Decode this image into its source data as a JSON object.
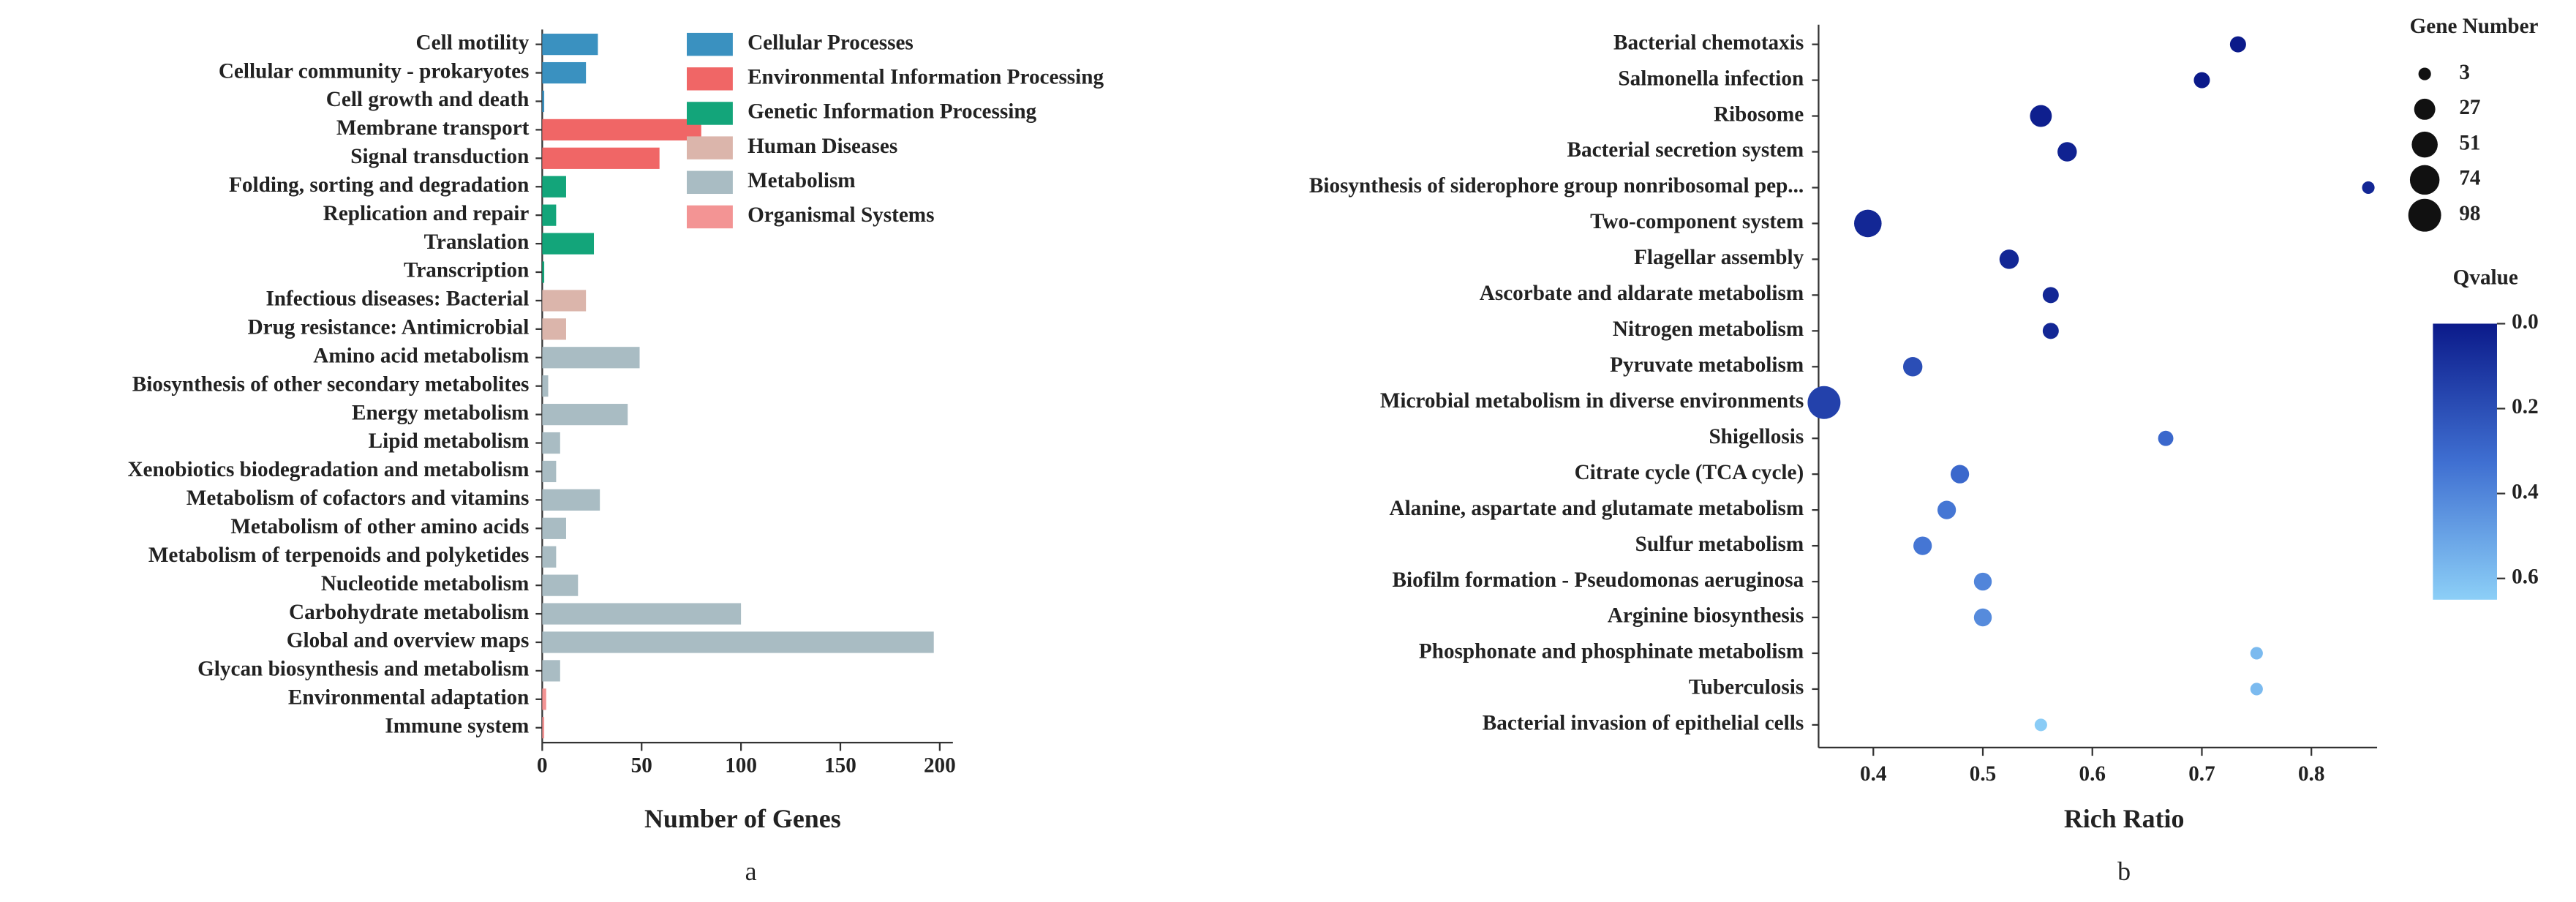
{
  "chart_data": [
    {
      "type": "bar",
      "horizontal": true,
      "grid": false,
      "categories": [
        "Cell motility",
        "Cellular community - prokaryotes",
        "Cell growth and death",
        "Membrane transport",
        "Signal transduction",
        "Folding, sorting and degradation",
        "Replication and repair",
        "Translation",
        "Transcription",
        "Infectious diseases: Bacterial",
        "Drug resistance: Antimicrobial",
        "Amino acid metabolism",
        "Biosynthesis of other secondary metabolites",
        "Energy metabolism",
        "Lipid metabolism",
        "Xenobiotics biodegradation and metabolism",
        "Metabolism of cofactors and vitamins",
        "Metabolism of other amino acids",
        "Metabolism of terpenoids and polyketides",
        "Nucleotide metabolism",
        "Carbohydrate metabolism",
        "Global and overview maps",
        "Glycan biosynthesis and metabolism",
        "Environmental adaptation",
        "Immune system"
      ],
      "series": [
        {
          "name": "Cellular Processes",
          "color": "#3a91c0",
          "values": [
            28,
            22,
            1,
            null,
            null,
            null,
            null,
            null,
            null,
            null,
            null,
            null,
            null,
            null,
            null,
            null,
            null,
            null,
            null,
            null,
            null,
            null,
            null,
            null,
            null
          ]
        },
        {
          "name": "Environmental Information Processing",
          "color": "#f06666",
          "values": [
            null,
            null,
            null,
            80,
            59,
            null,
            null,
            null,
            null,
            null,
            null,
            null,
            null,
            null,
            null,
            null,
            null,
            null,
            null,
            null,
            null,
            null,
            null,
            null,
            null
          ]
        },
        {
          "name": "Genetic Information Processing",
          "color": "#13a57a",
          "values": [
            null,
            null,
            null,
            null,
            null,
            12,
            7,
            26,
            1,
            null,
            null,
            null,
            null,
            null,
            null,
            null,
            null,
            null,
            null,
            null,
            null,
            null,
            null,
            null,
            null
          ]
        },
        {
          "name": "Human Diseases",
          "color": "#dbb5ab",
          "values": [
            null,
            null,
            null,
            null,
            null,
            null,
            null,
            null,
            null,
            22,
            12,
            null,
            null,
            null,
            null,
            null,
            null,
            null,
            null,
            null,
            null,
            null,
            null,
            null,
            null
          ]
        },
        {
          "name": "Metabolism",
          "color": "#a9bcc3",
          "values": [
            null,
            null,
            null,
            null,
            null,
            null,
            null,
            null,
            null,
            null,
            null,
            49,
            3,
            43,
            9,
            7,
            29,
            12,
            7,
            18,
            100,
            197,
            9,
            null,
            null
          ]
        },
        {
          "name": "Organismal Systems",
          "color": "#f39494",
          "values": [
            null,
            null,
            null,
            null,
            null,
            null,
            null,
            null,
            null,
            null,
            null,
            null,
            null,
            null,
            null,
            null,
            null,
            null,
            null,
            null,
            null,
            null,
            null,
            2,
            1
          ]
        }
      ],
      "xlim": [
        0,
        200
      ],
      "xticks": [
        0,
        50,
        100,
        150,
        200
      ],
      "x_label": "Number of Genes",
      "caption": "a"
    },
    {
      "type": "scatter",
      "grid": false,
      "categories": [
        "Bacterial chemotaxis",
        "Salmonella infection",
        "Ribosome",
        "Bacterial secretion system",
        "Biosynthesis of siderophore group nonribosomal pep...",
        "Two-component system",
        "Flagellar assembly",
        "Ascorbate and aldarate metabolism",
        "Nitrogen metabolism",
        "Pyruvate metabolism",
        "Microbial metabolism in diverse environments",
        "Shigellosis",
        "Citrate cycle (TCA cycle)",
        "Alanine, aspartate and glutamate metabolism",
        "Sulfur metabolism",
        "Biofilm formation - Pseudomonas aeruginosa",
        "Arginine biosynthesis",
        "Phosphonate and phosphinate metabolism",
        "Tuberculosis",
        "Bacterial invasion of epithelial cells"
      ],
      "x": [
        0.733,
        0.7,
        0.553,
        0.577,
        0.852,
        0.395,
        0.524,
        0.562,
        0.562,
        0.436,
        0.355,
        0.667,
        0.479,
        0.467,
        0.445,
        0.5,
        0.5,
        0.75,
        0.75,
        0.553
      ],
      "size": [
        10,
        10,
        30,
        20,
        3,
        60,
        20,
        10,
        10,
        20,
        98,
        8,
        17,
        17,
        17,
        15,
        15,
        3,
        3,
        3
      ],
      "qvalue": [
        0.0,
        0.0,
        0.02,
        0.03,
        0.05,
        0.05,
        0.05,
        0.05,
        0.05,
        0.2,
        0.15,
        0.3,
        0.3,
        0.35,
        0.35,
        0.4,
        0.42,
        0.58,
        0.58,
        0.64
      ],
      "xlim": [
        0.35,
        0.86
      ],
      "xticks": [
        0.4,
        0.5,
        0.6,
        0.7,
        0.8
      ],
      "x_label": "Rich Ratio",
      "caption": "b",
      "size_title": "Gene Number",
      "size_legend": [
        3,
        27,
        51,
        74,
        98
      ],
      "color_title": "Qvalue",
      "clim": [
        0,
        0.65
      ],
      "cticks": [
        {
          "value": 0,
          "label": "0.0"
        },
        0.2,
        0.4,
        0.6
      ],
      "colorscale": [
        "#0b1a8a",
        "#3f6fd1",
        "#8ccff7"
      ]
    }
  ]
}
